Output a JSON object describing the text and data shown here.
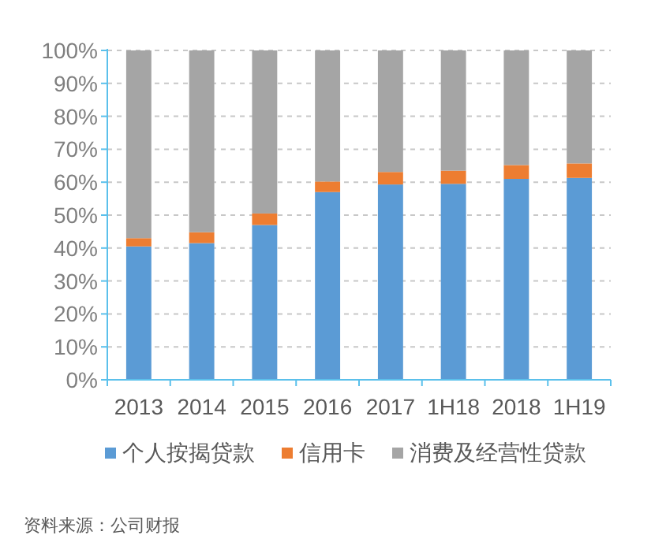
{
  "chart_data": {
    "type": "bar",
    "stacked": true,
    "categories": [
      "2013",
      "2014",
      "2015",
      "2016",
      "2017",
      "1H18",
      "2018",
      "1H19"
    ],
    "series": [
      {
        "name": "个人按揭贷款",
        "color": "#5b9bd5",
        "values": [
          40.5,
          41.5,
          47,
          57,
          59.3,
          59.5,
          61,
          61.3
        ]
      },
      {
        "name": "信用卡",
        "color": "#ed7d31",
        "values": [
          2.5,
          3.3,
          3.5,
          3.2,
          3.8,
          4,
          4.2,
          4.4
        ]
      },
      {
        "name": "消费及经营性贷款",
        "color": "#a5a5a5",
        "values": [
          57,
          55.2,
          49.5,
          39.8,
          36.9,
          36.5,
          34.8,
          34.3
        ]
      }
    ],
    "ylim": [
      0,
      100
    ],
    "yticks": [
      {
        "value": 0,
        "label": "0%"
      },
      {
        "value": 10,
        "label": "10%"
      },
      {
        "value": 20,
        "label": "20%"
      },
      {
        "value": 30,
        "label": "30%"
      },
      {
        "value": 40,
        "label": "40%"
      },
      {
        "value": 50,
        "label": "50%"
      },
      {
        "value": 60,
        "label": "60%"
      },
      {
        "value": 70,
        "label": "70%"
      },
      {
        "value": 80,
        "label": "80%"
      },
      {
        "value": 90,
        "label": "90%"
      },
      {
        "value": 100,
        "label": "100%"
      }
    ],
    "grid": "y",
    "legend": "bottom",
    "annotations": [
      "资料来源：公司财报"
    ]
  }
}
